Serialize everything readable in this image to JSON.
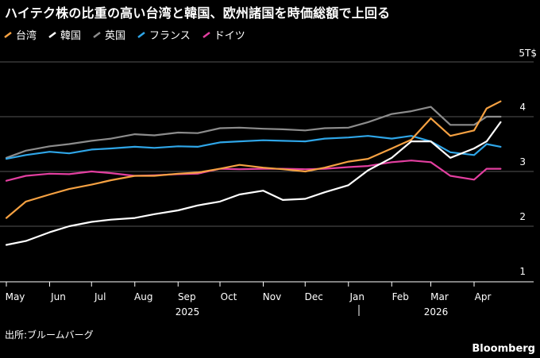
{
  "title": "ハイテク株の比重の高い台湾と韓国、欧州諸国を時価総額で上回る",
  "source": "出所:ブルームバーグ",
  "brand": "Bloomberg",
  "colors": {
    "background": "#000000",
    "grid": "#555555",
    "text": "#ffffff"
  },
  "chart_data": {
    "type": "line",
    "xlabel": "",
    "ylabel": "",
    "y_unit_label": "5T$",
    "ylim": [
      1,
      5
    ],
    "yticks": [
      1,
      2,
      3,
      4
    ],
    "month_labels": [
      "May",
      "Jun",
      "Jul",
      "Aug",
      "Sep",
      "Oct",
      "Nov",
      "Dec",
      "Jan",
      "Feb",
      "Mar",
      "Apr"
    ],
    "year_labels": [
      "2025",
      "2026"
    ],
    "legend_position": "top-left",
    "x": [
      "2025-05-01",
      "2025-05-15",
      "2025-06-01",
      "2025-06-15",
      "2025-07-01",
      "2025-07-15",
      "2025-08-01",
      "2025-08-15",
      "2025-09-01",
      "2025-09-15",
      "2025-10-01",
      "2025-10-15",
      "2025-11-01",
      "2025-11-15",
      "2025-12-01",
      "2025-12-15",
      "2026-01-01",
      "2026-01-15",
      "2026-02-01",
      "2026-02-15",
      "2026-03-01",
      "2026-03-15",
      "2026-04-01",
      "2026-04-10",
      "2026-04-20"
    ],
    "series": [
      {
        "name": "台湾",
        "color": "#f5a142",
        "values": [
          2.15,
          2.45,
          2.58,
          2.68,
          2.76,
          2.84,
          2.92,
          2.92,
          2.96,
          2.98,
          3.05,
          3.12,
          3.07,
          3.04,
          3.0,
          3.07,
          3.18,
          3.23,
          3.42,
          3.58,
          3.97,
          3.65,
          3.75,
          4.15,
          4.28
        ]
      },
      {
        "name": "韓国",
        "color": "#ffffff",
        "values": [
          1.66,
          1.73,
          1.89,
          2.0,
          2.08,
          2.12,
          2.15,
          2.22,
          2.29,
          2.38,
          2.45,
          2.58,
          2.65,
          2.48,
          2.5,
          2.62,
          2.75,
          3.02,
          3.25,
          3.55,
          3.55,
          3.25,
          3.42,
          3.55,
          3.9
        ]
      },
      {
        "name": "英国",
        "color": "#8c8c8c",
        "values": [
          3.25,
          3.38,
          3.46,
          3.5,
          3.56,
          3.6,
          3.68,
          3.66,
          3.71,
          3.7,
          3.79,
          3.8,
          3.78,
          3.77,
          3.75,
          3.79,
          3.8,
          3.9,
          4.05,
          4.1,
          4.18,
          3.85,
          3.85,
          4.0,
          4.0
        ]
      },
      {
        "name": "フランス",
        "color": "#2fa6e8",
        "values": [
          3.23,
          3.3,
          3.36,
          3.33,
          3.4,
          3.42,
          3.45,
          3.43,
          3.46,
          3.45,
          3.53,
          3.55,
          3.57,
          3.56,
          3.55,
          3.6,
          3.62,
          3.65,
          3.6,
          3.65,
          3.55,
          3.35,
          3.3,
          3.5,
          3.45
        ]
      },
      {
        "name": "ドイツ",
        "color": "#e33fa0",
        "values": [
          2.83,
          2.92,
          2.96,
          2.95,
          3.0,
          2.97,
          2.92,
          2.93,
          2.95,
          2.96,
          3.05,
          3.04,
          3.05,
          3.05,
          3.04,
          3.05,
          3.08,
          3.1,
          3.17,
          3.2,
          3.17,
          2.92,
          2.85,
          3.05,
          3.05
        ]
      }
    ]
  }
}
